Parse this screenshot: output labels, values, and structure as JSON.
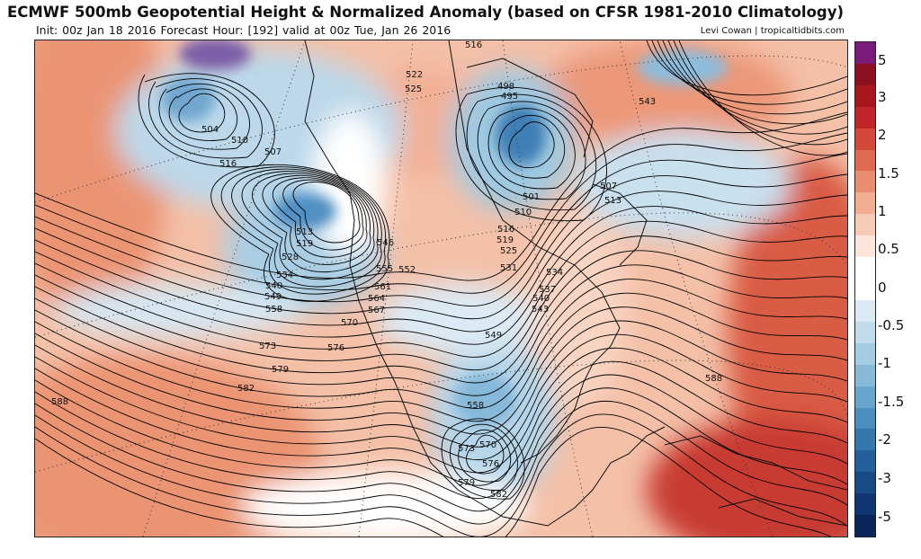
{
  "header": {
    "title": "ECMWF 500mb Geopotential Height & Normalized Anomaly (based on CFSR 1981-2010 Climatology)",
    "subtitle": "Init: 00z Jan 18 2016   Forecast Hour: [192]   valid at 00z Tue, Jan 26 2016",
    "credit": "Levi Cowan | tropicaltidbits.com"
  },
  "colorbar": {
    "labels": [
      "5",
      "3",
      "2",
      "1.5",
      "1",
      "0.5",
      "0",
      "-0.5",
      "-1",
      "-1.5",
      "-2",
      "-3",
      "-5"
    ],
    "colors": [
      "#7a1a7a",
      "#8c1020",
      "#a8161e",
      "#c0262a",
      "#d44a3a",
      "#e06a50",
      "#ea8c70",
      "#f2ad92",
      "#f8cbb6",
      "#fce6db",
      "#ffffff",
      "#ffffff",
      "#dbeaf3",
      "#c0dbea",
      "#a3cbe1",
      "#87bad8",
      "#68a5cd",
      "#4a8fc0",
      "#3478b0",
      "#24609e",
      "#184a88",
      "#103572",
      "#0a2558"
    ]
  },
  "map": {
    "contour_labels": [
      "504",
      "510",
      "516",
      "507",
      "513",
      "519",
      "528",
      "534",
      "540",
      "549",
      "558",
      "516",
      "522",
      "525",
      "498",
      "495",
      "543",
      "501",
      "507",
      "513",
      "510",
      "516",
      "519",
      "525",
      "531",
      "534",
      "537",
      "540",
      "543",
      "546",
      "552",
      "555",
      "561",
      "564",
      "567",
      "570",
      "573",
      "576",
      "579",
      "582",
      "549",
      "558",
      "573",
      "570",
      "576",
      "579",
      "582",
      "588",
      "588"
    ]
  }
}
